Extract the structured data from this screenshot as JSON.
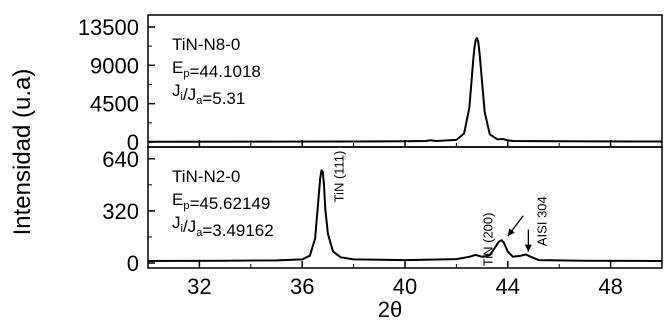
{
  "chart_data": {
    "type": "line",
    "shared_x": {
      "label": "2θ",
      "range": [
        30,
        50
      ],
      "ticks": [
        32,
        36,
        40,
        44,
        48
      ],
      "minor_ticks": [
        30,
        34,
        38,
        42,
        46,
        50
      ]
    },
    "ylabel": "Intensidad (u.a)",
    "panels": [
      {
        "y_range": [
          0,
          13500
        ],
        "y_ticks": [
          0,
          4500,
          9000,
          13500
        ],
        "legend_lines": [
          "TiN-N8-0",
          "E_p=44.1018",
          "J_i/J_a=5.31"
        ],
        "series": [
          {
            "x": [
              30,
              38,
              40,
              40.8,
              41,
              41.2,
              42,
              42.3,
              42.5,
              42.6,
              42.65,
              42.7,
              42.75,
              42.8,
              42.85,
              42.9,
              43.0,
              43.1,
              43.3,
              43.6,
              43.8,
              44.0,
              44.2,
              46,
              50
            ],
            "y": [
              40,
              60,
              80,
              120,
              200,
              120,
              250,
              1000,
              4000,
              7500,
              9500,
              11000,
              12000,
              12200,
              11800,
              10500,
              7000,
              3500,
              900,
              300,
              350,
              200,
              120,
              80,
              60
            ]
          }
        ],
        "annotations": []
      },
      {
        "y_range": [
          0,
          700
        ],
        "y_ticks": [
          0,
          320,
          640
        ],
        "legend_lines": [
          "TiN-N2-0",
          "E_p=45.62149",
          "J_i/J_a=3.49162"
        ],
        "series": [
          {
            "x": [
              30,
              33,
              35,
              36.0,
              36.3,
              36.5,
              36.6,
              36.7,
              36.75,
              36.8,
              36.85,
              36.9,
              37.0,
              37.2,
              37.5,
              38,
              40,
              42,
              42.5,
              42.75,
              43.0,
              43.3,
              43.5,
              43.65,
              43.75,
              43.85,
              44.0,
              44.2,
              44.5,
              44.7,
              44.9,
              45.2,
              47,
              50
            ],
            "y": [
              12,
              14,
              16,
              22,
              45,
              150,
              330,
              520,
              570,
              560,
              480,
              330,
              180,
              70,
              35,
              22,
              18,
              24,
              38,
              50,
              38,
              48,
              95,
              130,
              140,
              125,
              70,
              38,
              44,
              52,
              38,
              18,
              14,
              12
            ]
          }
        ],
        "annotations": [
          {
            "text": "TiN (111)",
            "x": 37.6,
            "y": 690
          },
          {
            "text": "TiN (200)",
            "x": 43.4,
            "y": 310
          },
          {
            "text": "AISI 304",
            "x": 45.5,
            "y": 410
          }
        ],
        "arrows": [
          {
            "from": [
              44.6,
              290
            ],
            "to": [
              44.0,
              165
            ]
          },
          {
            "from": [
              44.8,
              205
            ],
            "to": [
              44.8,
              70
            ]
          }
        ]
      }
    ]
  }
}
